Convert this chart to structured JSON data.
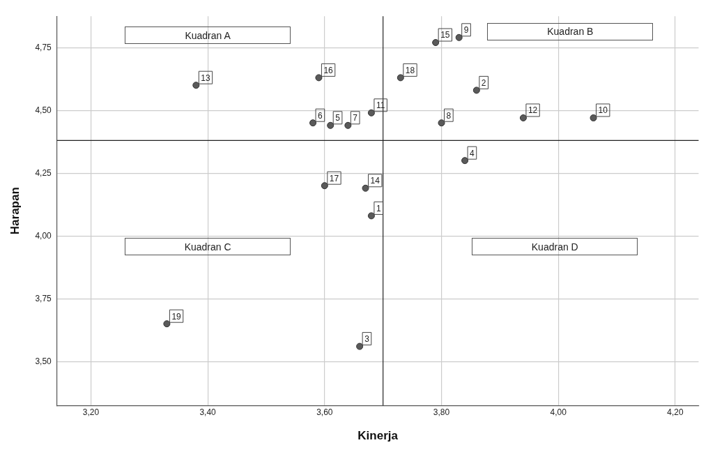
{
  "chart_data": {
    "type": "scatter",
    "xlabel": "Kinerja",
    "ylabel": "Harapan",
    "series": [
      {
        "name": "1",
        "color": "#5a5a5a",
        "x": [
          3.68
        ],
        "values": [
          4.08
        ]
      },
      {
        "name": "2",
        "color": "#5a5a5a",
        "x": [
          3.86
        ],
        "values": [
          4.58
        ]
      },
      {
        "name": "3",
        "color": "#5a5a5a",
        "x": [
          3.66
        ],
        "values": [
          3.56
        ]
      },
      {
        "name": "4",
        "color": "#5a5a5a",
        "x": [
          3.84
        ],
        "values": [
          4.3
        ]
      },
      {
        "name": "5",
        "color": "#5a5a5a",
        "x": [
          3.61
        ],
        "values": [
          4.44
        ]
      },
      {
        "name": "6",
        "color": "#5a5a5a",
        "x": [
          3.58
        ],
        "values": [
          4.45
        ]
      },
      {
        "name": "7",
        "color": "#5a5a5a",
        "x": [
          3.64
        ],
        "values": [
          4.44
        ]
      },
      {
        "name": "8",
        "color": "#5a5a5a",
        "x": [
          3.8
        ],
        "values": [
          4.45
        ]
      },
      {
        "name": "9",
        "color": "#5a5a5a",
        "x": [
          3.83
        ],
        "values": [
          4.79
        ]
      },
      {
        "name": "10",
        "color": "#5a5a5a",
        "x": [
          4.06
        ],
        "values": [
          4.47
        ]
      },
      {
        "name": "11",
        "color": "#5a5a5a",
        "x": [
          3.68
        ],
        "values": [
          4.49
        ]
      },
      {
        "name": "12",
        "color": "#5a5a5a",
        "x": [
          3.94
        ],
        "values": [
          4.47
        ]
      },
      {
        "name": "13",
        "color": "#5a5a5a",
        "x": [
          3.38
        ],
        "values": [
          4.6
        ]
      },
      {
        "name": "14",
        "color": "#5a5a5a",
        "x": [
          3.67
        ],
        "values": [
          4.19
        ]
      },
      {
        "name": "15",
        "color": "#5a5a5a",
        "x": [
          3.79
        ],
        "values": [
          4.77
        ]
      },
      {
        "name": "16",
        "color": "#5a5a5a",
        "x": [
          3.59
        ],
        "values": [
          4.63
        ]
      },
      {
        "name": "17",
        "color": "#5a5a5a",
        "x": [
          3.6
        ],
        "values": [
          4.2
        ]
      },
      {
        "name": "18",
        "color": "#5a5a5a",
        "x": [
          3.73
        ],
        "values": [
          4.63
        ]
      },
      {
        "name": "19",
        "color": "#5a5a5a",
        "x": [
          3.33
        ],
        "values": [
          3.65
        ]
      }
    ],
    "marker": "circle",
    "grid": true,
    "legend": false,
    "xlim": [
      3.142,
      4.24
    ],
    "xticks": [
      {
        "value": 3.2,
        "label": "3,20"
      },
      {
        "value": 3.4,
        "label": "3,40"
      },
      {
        "value": 3.6,
        "label": "3,60"
      },
      {
        "value": 3.8,
        "label": "3,80"
      },
      {
        "value": 4.0,
        "label": "4,00"
      },
      {
        "value": 4.2,
        "label": "4,20"
      }
    ],
    "ylim": [
      3.325,
      4.875
    ],
    "yticks": [
      {
        "value": 3.5,
        "label": "3,50"
      },
      {
        "value": 3.75,
        "label": "3,75"
      },
      {
        "value": 4.0,
        "label": "4,00"
      },
      {
        "value": 4.25,
        "label": "4,25"
      },
      {
        "value": 4.5,
        "label": "4,50"
      },
      {
        "value": 4.75,
        "label": "4,75"
      }
    ],
    "ref_lines": [
      {
        "axis": "x",
        "value": 3.7,
        "color": "#222222"
      },
      {
        "axis": "y",
        "value": 4.38,
        "color": "#222222"
      }
    ],
    "annotations": [
      "Kuadran A",
      "Kuadran B",
      "Kuadran C",
      "Kuadran D"
    ]
  }
}
